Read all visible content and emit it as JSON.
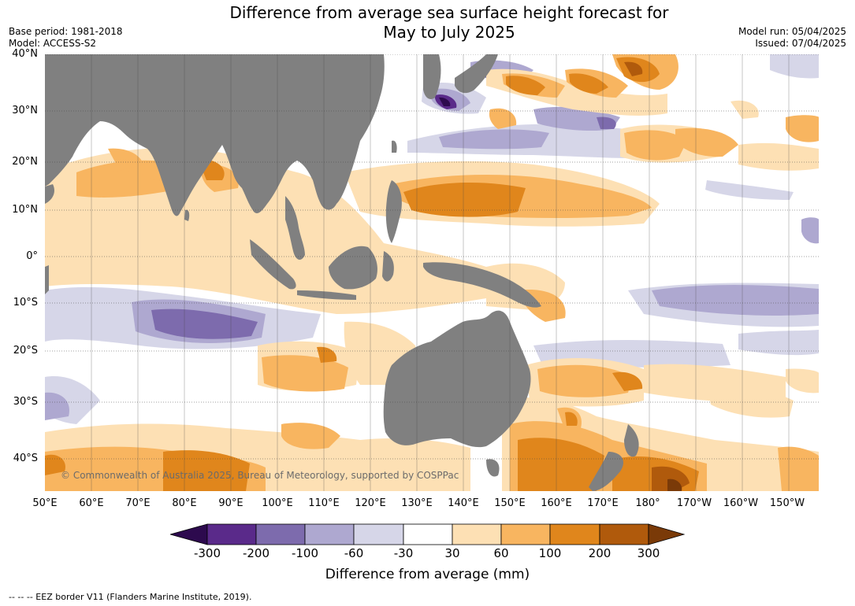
{
  "title_line1": "Difference from average sea surface height forecast for",
  "title_line2": "May to July 2025",
  "base_period": "Base period: 1981-2018",
  "model": "Model: ACCESS-S2",
  "model_run": "Model run: 05/04/2025",
  "issued": "Issued: 07/04/2025",
  "lat_labels": [
    "40°N",
    "30°N",
    "20°N",
    "10°N",
    "0°",
    "10°S",
    "20°S",
    "30°S",
    "40°S"
  ],
  "lon_labels": [
    "50°E",
    "60°E",
    "70°E",
    "80°E",
    "90°E",
    "100°E",
    "110°E",
    "120°E",
    "130°E",
    "140°E",
    "150°E",
    "160°E",
    "170°E",
    "180°",
    "170°W",
    "160°W",
    "150°W"
  ],
  "copyright": "© Commonwealth of Australia 2025, Bureau of Meteorology, supported by COSPPac",
  "colorbar": {
    "ticks": [
      "-300",
      "-200",
      "-100",
      "-60",
      "-30",
      "30",
      "60",
      "100",
      "200",
      "300"
    ],
    "label": "Difference from average (mm)",
    "colors": [
      "#2d0a4e",
      "#5a2a8a",
      "#7d6bad",
      "#aea8d0",
      "#d6d6e8",
      "#ffffff",
      "#fde0b4",
      "#f8b560",
      "#e0861c",
      "#b05a0c",
      "#7a3a08"
    ]
  },
  "footnote": "--  --  -- EEZ border V11 (Flanders Marine Institute, 2019).",
  "colors": {
    "land": "#808080",
    "ocean": "#ffffff"
  }
}
